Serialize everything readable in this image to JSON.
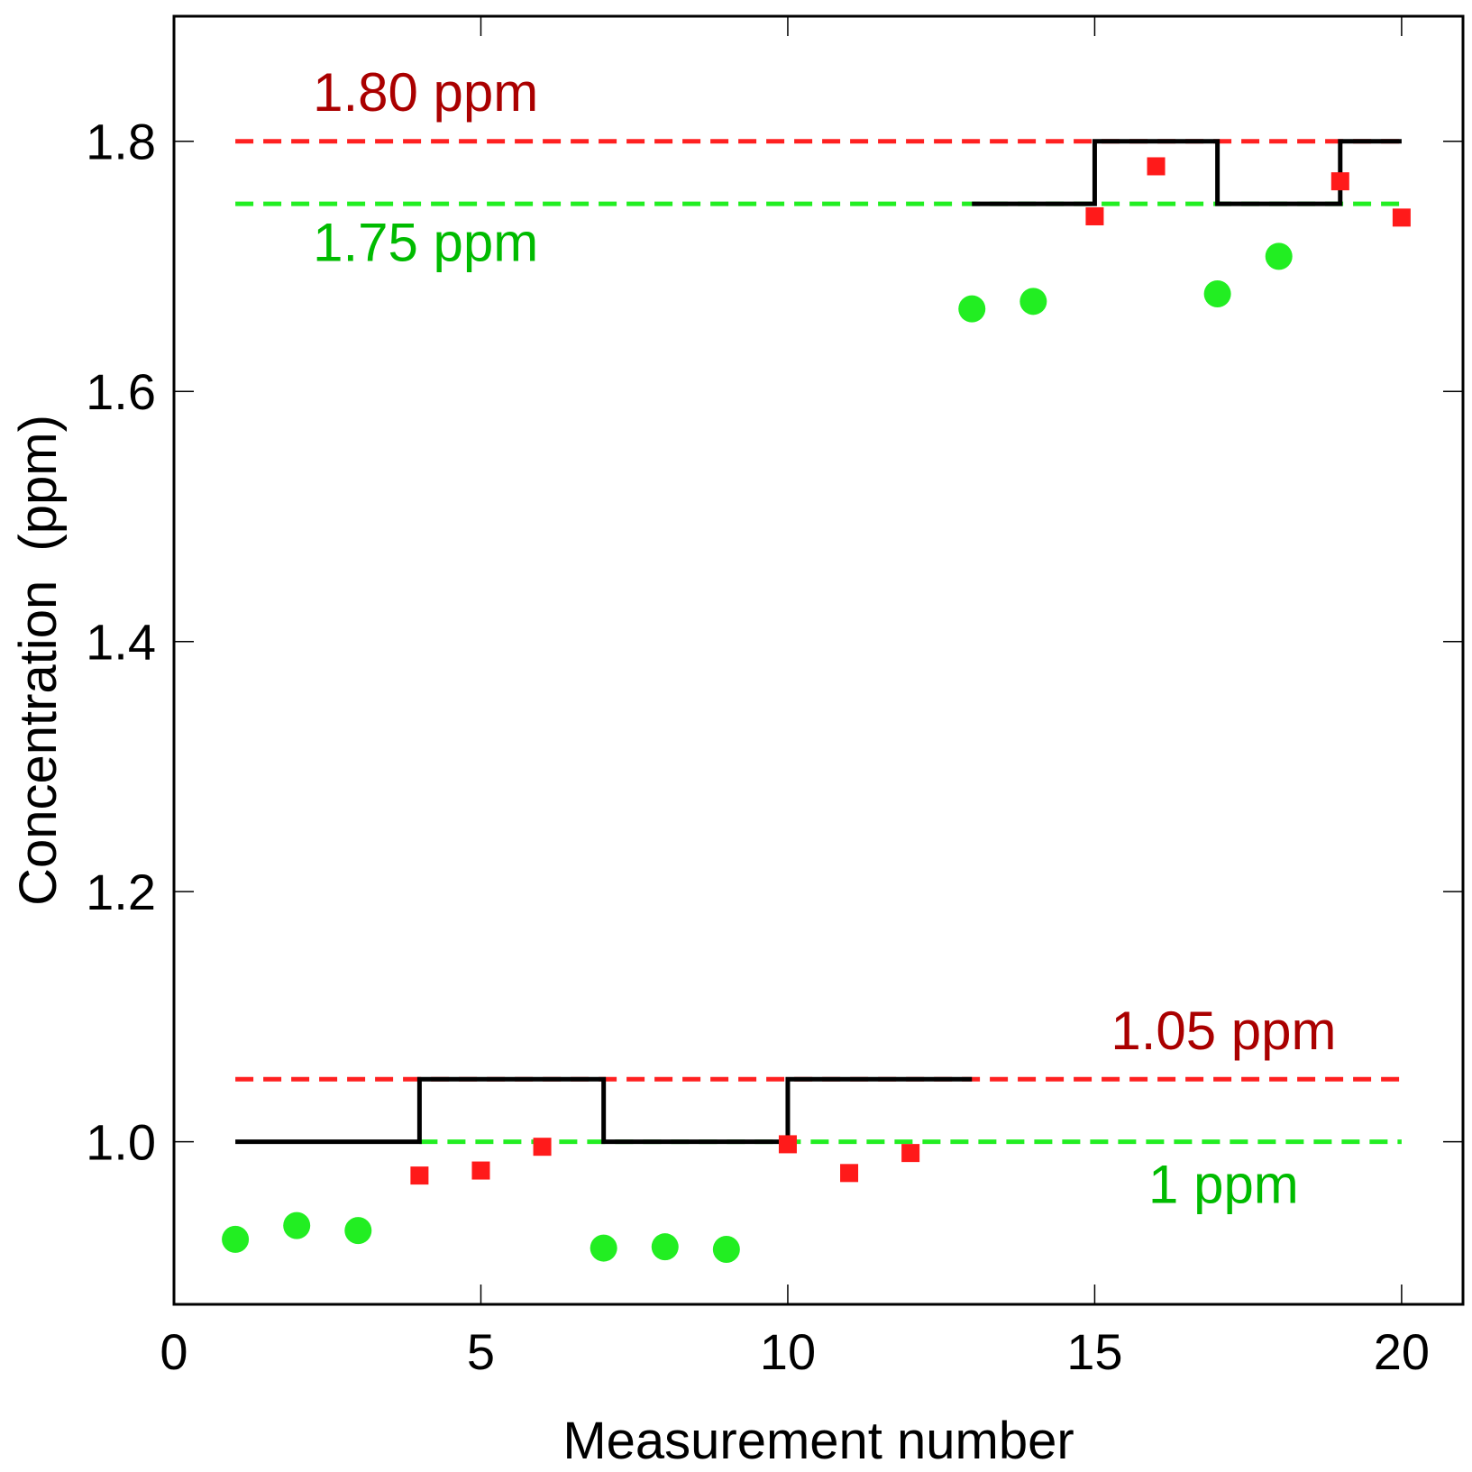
{
  "chart_data": {
    "type": "scatter",
    "title": "",
    "xlabel": "Measurement number",
    "ylabel": "Concentration  (ppm)",
    "xlim": [
      0,
      21
    ],
    "ylim": [
      0.87,
      1.9
    ],
    "xticks": [
      0,
      5,
      10,
      15,
      20
    ],
    "xtick_labels": [
      "0",
      "5",
      "10",
      "15",
      "20"
    ],
    "yticks": [
      1.0,
      1.2,
      1.4,
      1.6,
      1.8
    ],
    "ytick_labels": [
      "1.0",
      "1.2",
      "1.4",
      "1.6",
      "1.8"
    ],
    "colors": {
      "green_points": "#22ee22",
      "red_points": "#ff1a1a",
      "red_line": "#ff2020",
      "green_line": "#22ee22",
      "step_line": "#000000",
      "red_text": "#aa0000",
      "green_text": "#00bb00"
    },
    "series": [
      {
        "name": "green circles",
        "marker": "circle",
        "points": [
          [
            1,
            0.922
          ],
          [
            2,
            0.933
          ],
          [
            3,
            0.929
          ],
          [
            7,
            0.915
          ],
          [
            8,
            0.916
          ],
          [
            9,
            0.914
          ],
          [
            13,
            1.666
          ],
          [
            14,
            1.672
          ],
          [
            17,
            1.678
          ],
          [
            18,
            1.708
          ]
        ]
      },
      {
        "name": "red squares",
        "marker": "square",
        "points": [
          [
            4,
            0.973
          ],
          [
            5,
            0.977
          ],
          [
            6,
            0.996
          ],
          [
            10,
            0.998
          ],
          [
            11,
            0.975
          ],
          [
            12,
            0.991
          ],
          [
            15,
            1.74
          ],
          [
            16,
            1.78
          ],
          [
            19,
            1.768
          ],
          [
            20,
            1.739
          ]
        ]
      },
      {
        "name": "reference step",
        "type": "step",
        "segments": [
          [
            [
              1,
              1.0
            ],
            [
              4,
              1.0
            ],
            [
              4,
              1.05
            ],
            [
              7,
              1.05
            ],
            [
              7,
              1.0
            ],
            [
              10,
              1.0
            ],
            [
              10,
              1.05
            ],
            [
              13,
              1.05
            ]
          ],
          [
            [
              13,
              1.75
            ],
            [
              15,
              1.75
            ],
            [
              15,
              1.8
            ],
            [
              17,
              1.8
            ],
            [
              17,
              1.75
            ],
            [
              19,
              1.75
            ],
            [
              19,
              1.8
            ],
            [
              20,
              1.8
            ]
          ]
        ]
      }
    ],
    "reference_lines": [
      {
        "y": 1.8,
        "x_range": [
          1,
          20
        ],
        "color": "red",
        "style": "dashed"
      },
      {
        "y": 1.75,
        "x_range": [
          1,
          20
        ],
        "color": "green",
        "style": "dashed"
      },
      {
        "y": 1.05,
        "x_range": [
          1,
          20
        ],
        "color": "red",
        "style": "dashed"
      },
      {
        "y": 1.0,
        "x_range": [
          4,
          20
        ],
        "color": "green",
        "style": "dashed"
      }
    ],
    "annotations": [
      {
        "text": "1.80 ppm",
        "x": 4.1,
        "y": 1.84,
        "color": "red"
      },
      {
        "text": "1.75 ppm",
        "x": 4.1,
        "y": 1.72,
        "color": "green"
      },
      {
        "text": "1.05 ppm",
        "x": 17.1,
        "y": 1.09,
        "color": "red"
      },
      {
        "text": "1 ppm",
        "x": 17.1,
        "y": 0.967,
        "color": "green"
      }
    ]
  }
}
